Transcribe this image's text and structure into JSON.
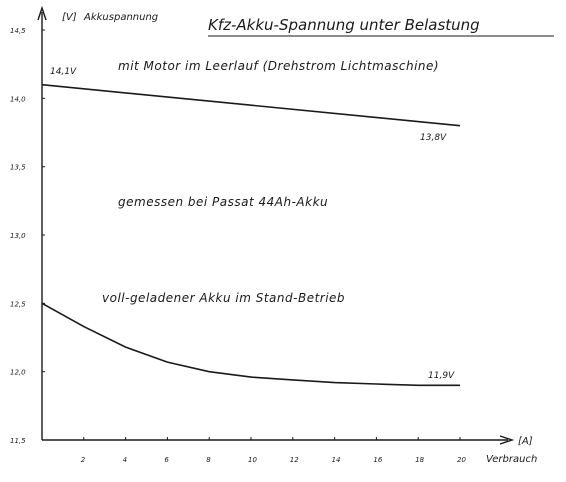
{
  "chart_data": {
    "type": "line",
    "title": "Kfz-Akku-Spannung unter Belastung",
    "ylabel": "Akkuspannung",
    "yunit": "[V]",
    "xlabel": "Verbrauch",
    "xunit": "[A]",
    "xlim": [
      0,
      21
    ],
    "ylim": [
      11.5,
      14.5
    ],
    "xticks": [
      "2",
      "4",
      "6",
      "8",
      "10",
      "12",
      "14",
      "16",
      "18",
      "20"
    ],
    "yticks": [
      "14,5",
      "14,0",
      "13,5",
      "13,0",
      "12,5",
      "12,0",
      "11,5"
    ],
    "grid": false,
    "series": [
      {
        "name": "mit Motor im Leerlauf (Drehstrom Lichtmaschine)",
        "x": [
          0,
          20
        ],
        "y": [
          14.1,
          13.8
        ],
        "start_label": "14,1V",
        "end_label": "13,8V"
      },
      {
        "name": "voll-geladener Akku im Stand-Betrieb",
        "x": [
          0,
          2,
          4,
          6,
          8,
          10,
          12,
          14,
          16,
          18,
          20
        ],
        "y": [
          12.5,
          12.33,
          12.18,
          12.07,
          12.0,
          11.96,
          11.94,
          11.92,
          11.91,
          11.9,
          11.9
        ],
        "end_label": "11,9V"
      }
    ],
    "annotations": [
      "gemessen bei Passat 44Ah-Akku"
    ]
  }
}
